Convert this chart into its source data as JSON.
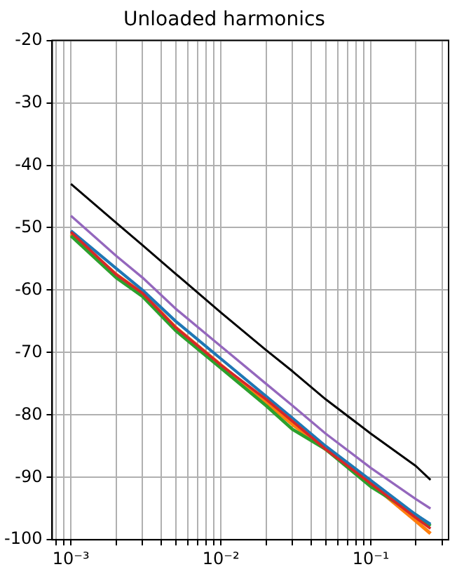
{
  "chart_data": {
    "type": "line",
    "title": "Unloaded harmonics",
    "log": "x",
    "grid": true,
    "marker": "none",
    "line_style": "solid",
    "x": [
      0.001,
      0.002,
      0.003,
      0.005,
      0.01,
      0.02,
      0.03,
      0.05,
      0.1,
      0.2,
      0.25
    ],
    "xlim": [
      0.00075,
      0.33
    ],
    "xticks": [
      {
        "value": 0.0008,
        "label": null
      },
      {
        "value": 0.0009,
        "label": null
      },
      {
        "value": 0.001,
        "label": "10⁻³"
      },
      {
        "value": 0.002,
        "label": null
      },
      {
        "value": 0.003,
        "label": null
      },
      {
        "value": 0.004,
        "label": null
      },
      {
        "value": 0.005,
        "label": null
      },
      {
        "value": 0.006,
        "label": null
      },
      {
        "value": 0.007,
        "label": null
      },
      {
        "value": 0.008,
        "label": null
      },
      {
        "value": 0.009,
        "label": null
      },
      {
        "value": 0.01,
        "label": "10⁻²"
      },
      {
        "value": 0.02,
        "label": null
      },
      {
        "value": 0.03,
        "label": null
      },
      {
        "value": 0.04,
        "label": null
      },
      {
        "value": 0.05,
        "label": null
      },
      {
        "value": 0.06,
        "label": null
      },
      {
        "value": 0.07,
        "label": null
      },
      {
        "value": 0.08,
        "label": null
      },
      {
        "value": 0.09,
        "label": null
      },
      {
        "value": 0.1,
        "label": "10⁻¹"
      },
      {
        "value": 0.2,
        "label": null
      },
      {
        "value": 0.3,
        "label": null
      }
    ],
    "ylim": [
      -100,
      -20
    ],
    "yticks": [
      -100,
      -90,
      -80,
      -70,
      -60,
      -50,
      -40,
      -30,
      -20
    ],
    "series": [
      {
        "color": "#000000",
        "values": [
          -43,
          -49.2,
          -52.8,
          -57.4,
          -63.6,
          -69.6,
          -73,
          -77.5,
          -83,
          -88.2,
          -90.4
        ]
      },
      {
        "color": "#9467bd",
        "values": [
          -48.1,
          -54.5,
          -58,
          -63,
          -69,
          -75,
          -78.5,
          -83,
          -88.5,
          -93.5,
          -95
        ]
      },
      {
        "color": "#d62728",
        "values": [
          -50.7,
          -57.5,
          -60.5,
          -66,
          -72,
          -77.5,
          -81,
          -85.5,
          -91,
          -96.5,
          -98.2
        ]
      },
      {
        "color": "#1f77b4",
        "values": [
          -50.5,
          -56.5,
          -60,
          -65,
          -71,
          -77,
          -80.5,
          -85,
          -90.5,
          -96,
          -97.5
        ]
      },
      {
        "color": "#2ca02c",
        "values": [
          -51.3,
          -58,
          -61,
          -66.5,
          -72.5,
          -78.5,
          -82.3,
          -85.5,
          -91.5,
          -96,
          -97.8
        ]
      },
      {
        "color": "#ff7f0e",
        "values": [
          -51,
          -57.5,
          -60.5,
          -66,
          -72,
          -78,
          -81.5,
          -85.5,
          -91,
          -97,
          -99
        ]
      }
    ]
  }
}
